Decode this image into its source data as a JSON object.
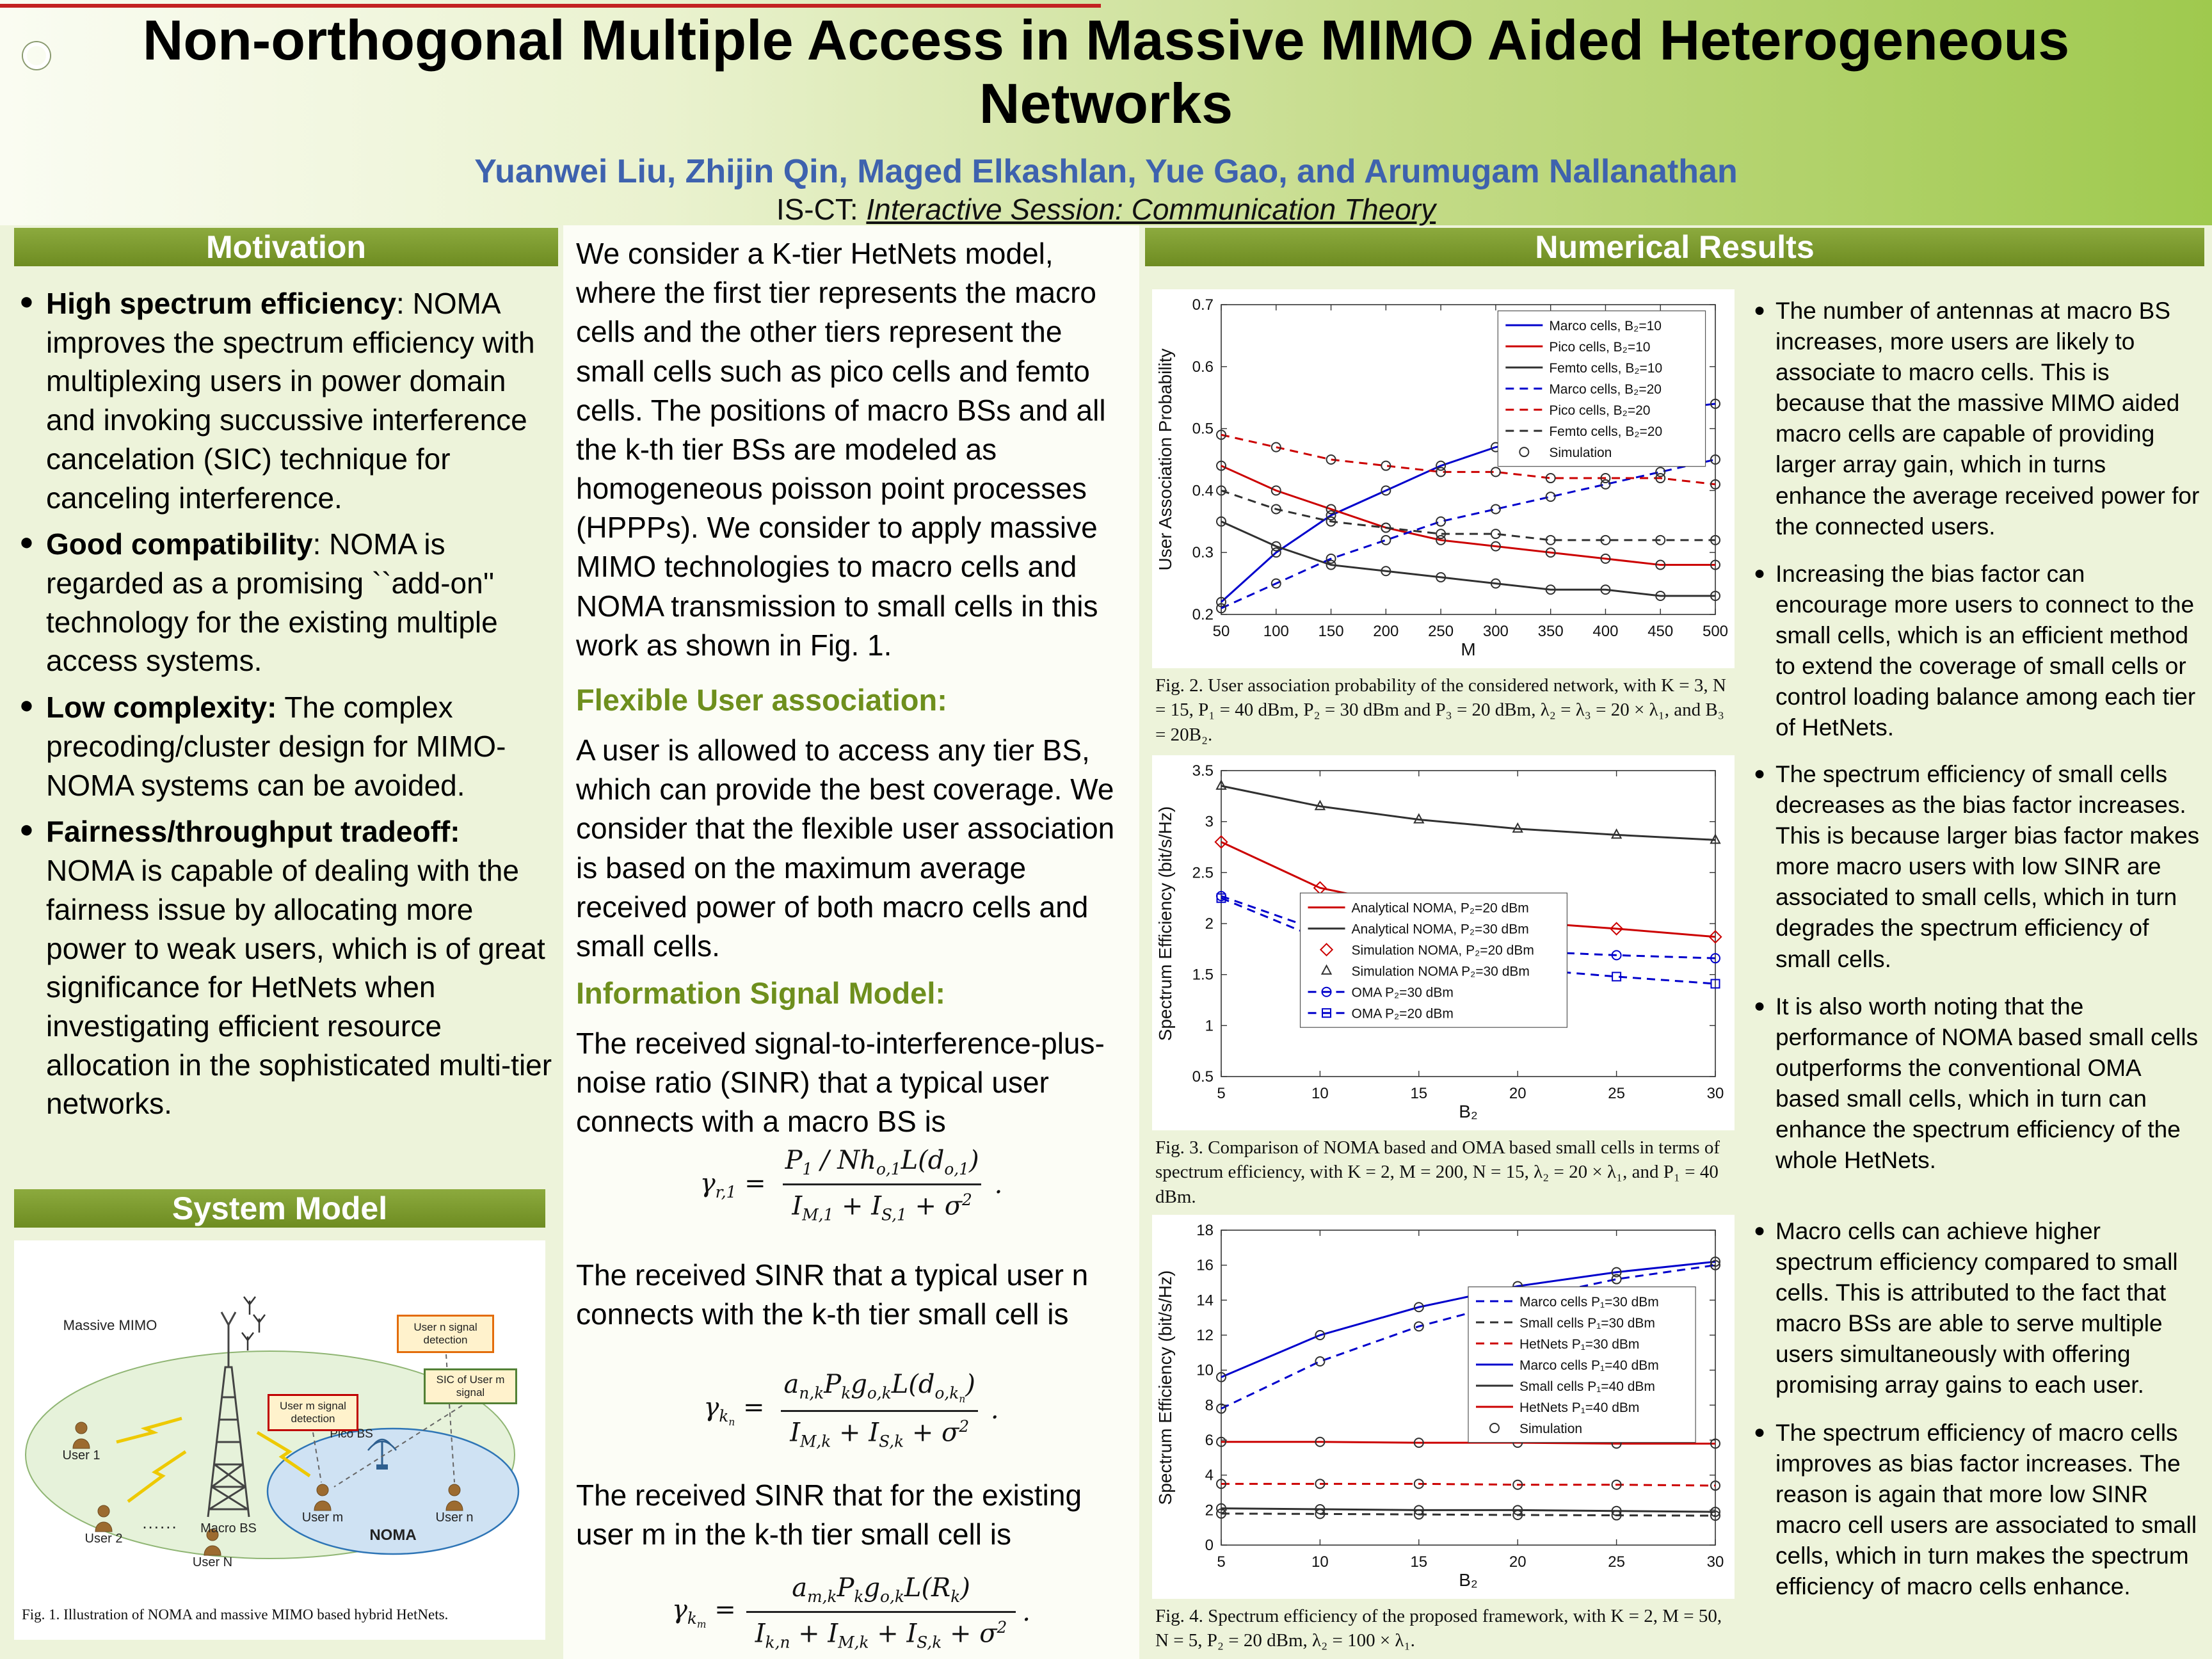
{
  "header": {
    "title": "Non-orthogonal Multiple Access in Massive MIMO Aided Heterogeneous Networks",
    "authors": "Yuanwei Liu, Zhijin Qin, Maged Elkashlan, Yue Gao, and Arumugam Nallanathan",
    "session_prefix": "IS-CT: ",
    "session_italic": "Interactive Session: Communication Theory"
  },
  "motivation": {
    "heading": "Motivation",
    "items": [
      {
        "lead": "High spectrum efficiency",
        "text": ": NOMA improves the spectrum efficiency with multiplexing users in power domain and invoking succussive interference cancelation (SIC) technique for canceling interference."
      },
      {
        "lead": "Good compatibility",
        "text": ": NOMA is regarded as a promising ``add-on'' technology for the existing multiple access systems."
      },
      {
        "lead": "Low complexity:",
        "text": " The complex precoding/cluster design for MIMO-NOMA systems can be avoided."
      },
      {
        "lead": "Fairness/throughput tradeoff:",
        "text": " NOMA is capable of dealing with the fairness issue by allocating more power to weak users, which is of great significance for HetNets when investigating efficient resource allocation in the sophisticated multi-tier networks."
      }
    ]
  },
  "system_model": {
    "heading": "System Model",
    "fig1": {
      "massive_mimo": "Massive MIMO",
      "macro_bs": "Macro BS",
      "pico_bs": "Pico BS",
      "noma": "NOMA",
      "user1": "User 1",
      "user2": "User 2",
      "userN": "User N",
      "dots": "......",
      "user_m": "User m",
      "user_n": "User n",
      "box_user_n": "User n signal detection",
      "box_sic": "SIC of User m signal",
      "box_user_m": "User m signal detection",
      "caption": "Fig. 1.   Illustration of NOMA and massive MIMO based hybrid HetNets."
    }
  },
  "middle": {
    "intro": "We consider a K-tier HetNets model, where the first tier represents the macro cells and the other tiers represent the small cells such as pico cells and femto cells. The positions of macro BSs and all the k-th tier BSs are modeled as homogeneous poisson point processes (HPPPs). We consider to apply massive MIMO technologies to macro cells and NOMA transmission to small cells in this work as shown in Fig. 1.",
    "flexible_heading": "Flexible User association:",
    "flexible_text": "A user is allowed to access any tier BS, which can provide the best coverage. We consider that the flexible user association is based on the maximum average received power of both macro cells and small cells.",
    "signal_heading": "Information Signal Model:",
    "sinr_macro_text": "The received signal-to-interference-plus-noise ratio (SINR) that a typical user connects with a macro BS is",
    "eq1": {
      "lhs": "γ<sub>r,1</sub> =",
      "num": "P<sub>1</sub> / Nh<sub>o,1</sub>L(d<sub>o,1</sub>)",
      "den": "I<sub>M,1</sub> + I<sub>S,1</sub> + σ<sup>2</sup>",
      "tail": "."
    },
    "sinr_smalln_text": "The received SINR that a typical user n connects with the k-th tier small cell is",
    "eq2": {
      "lhs": "γ<sub>k<sub>n</sub></sub> =",
      "num": "a<sub>n,k</sub>P<sub>k</sub>g<sub>o,k</sub>L(d<sub>o,k<sub>n</sub></sub>)",
      "den": "I<sub>M,k</sub> + I<sub>S,k</sub> + σ<sup>2</sup>",
      "tail": "."
    },
    "sinr_smallm_text": "The  received SINR that for the existing user m in the k-th tier small cell is",
    "eq3": {
      "lhs": "γ<sub>k<sub>m</sub></sub> =",
      "num": "a<sub>m,k</sub>P<sub>k</sub>g<sub>o,k</sub>L(R<sub>k</sub>)",
      "den": "I<sub>k,n</sub> + I<sub>M,k</sub> + I<sub>S,k</sub> + σ<sup>2</sup>",
      "tail": "."
    }
  },
  "numerical": {
    "heading": "Numerical Results",
    "fig2_caption": "Fig. 2.   User association probability of the considered network, with K = 3, N = 15, P₁ = 40 dBm, P₂ = 30 dBm and P₃ = 20 dBm, λ₂ = λ₃ = 20 × λ₁, and B₃ = 20B₂.",
    "fig3_caption": "Fig. 3.   Comparison of NOMA based and OMA based small cells in terms of spectrum efficiency, with K = 2, M = 200, N = 15, λ₂ = 20 × λ₁, and P₁ = 40 dBm.",
    "fig4_caption": "Fig. 4.   Spectrum efficiency of the proposed framework, with K = 2, M = 50, N = 5, P₂ = 20 dBm, λ₂ = 100 × λ₁.",
    "fig2_bullets": [
      "The number of antennas at macro BS increases, more users are likely to associate to macro cells. This is because that the massive MIMO aided macro cells are capable of providing larger array gain, which in turns enhance the average received power for the connected users.",
      "Increasing the bias factor can encourage more users to connect to the small cells, which is an efficient method to extend the coverage of small cells or control loading balance among each tier of HetNets."
    ],
    "fig3_bullets": [
      "The spectrum efficiency of small cells decreases as the bias factor increases. This is because larger bias factor makes more macro users with low SINR are associated to small cells, which in turn degrades the spectrum efficiency of small cells.",
      "It is also worth noting that the performance of NOMA based small cells outperforms the conventional OMA based small cells, which in turn can enhance the spectrum efficiency of the whole HetNets."
    ],
    "fig4_bullets": [
      "Macro cells can achieve higher spectrum efficiency compared to small cells. This is attributed to the fact that macro BSs are able to serve multiple users simultaneously with offering promising array gains to each user.",
      "The spectrum efficiency of macro cells improves as bias factor increases. The reason is again that more low SINR macro cell users are associated to small cells, which in turn makes the spectrum efficiency of macro cells enhance."
    ]
  },
  "chart_data": [
    {
      "name": "fig2",
      "type": "line",
      "xlabel": "M",
      "ylabel": "User Association Probability",
      "xlim": [
        50,
        500
      ],
      "ylim": [
        0.2,
        0.7
      ],
      "xticks": [
        50,
        100,
        150,
        200,
        250,
        300,
        350,
        400,
        450,
        500
      ],
      "yticks": [
        0.2,
        0.3,
        0.4,
        0.5,
        0.6,
        0.7
      ],
      "x": [
        50,
        100,
        150,
        200,
        250,
        300,
        350,
        400,
        450,
        500
      ],
      "series": [
        {
          "name": "Marco cells, B₂=10",
          "color": "#0000CC",
          "dash": false,
          "marker": "circle",
          "mcolor": "#303030",
          "values": [
            0.22,
            0.3,
            0.36,
            0.4,
            0.44,
            0.47,
            0.49,
            0.51,
            0.53,
            0.54
          ]
        },
        {
          "name": "Pico cells, B₂=10",
          "color": "#CC0000",
          "dash": false,
          "marker": "circle",
          "mcolor": "#303030",
          "values": [
            0.44,
            0.4,
            0.37,
            0.34,
            0.32,
            0.31,
            0.3,
            0.29,
            0.28,
            0.28
          ]
        },
        {
          "name": "Femto cells, B₂=10",
          "color": "#303030",
          "dash": false,
          "marker": "circle",
          "mcolor": "#303030",
          "values": [
            0.35,
            0.31,
            0.28,
            0.27,
            0.26,
            0.25,
            0.24,
            0.24,
            0.23,
            0.23
          ]
        },
        {
          "name": "Marco cells, B₂=20",
          "color": "#0000CC",
          "dash": true,
          "marker": "circle",
          "mcolor": "#303030",
          "values": [
            0.21,
            0.25,
            0.29,
            0.32,
            0.35,
            0.37,
            0.39,
            0.41,
            0.43,
            0.45
          ]
        },
        {
          "name": "Pico cells, B₂=20",
          "color": "#CC0000",
          "dash": true,
          "marker": "circle",
          "mcolor": "#303030",
          "values": [
            0.49,
            0.47,
            0.45,
            0.44,
            0.43,
            0.43,
            0.42,
            0.42,
            0.42,
            0.41
          ]
        },
        {
          "name": "Femto cells, B₂=20",
          "color": "#303030",
          "dash": true,
          "marker": "circle",
          "mcolor": "#303030",
          "values": [
            0.4,
            0.37,
            0.35,
            0.34,
            0.33,
            0.33,
            0.32,
            0.32,
            0.32,
            0.32
          ]
        }
      ],
      "legend": [
        {
          "name": "Marco cells, B₂=10",
          "color": "#0000CC",
          "dash": false
        },
        {
          "name": "Pico cells, B₂=10",
          "color": "#CC0000",
          "dash": false
        },
        {
          "name": "Femto cells, B₂=10",
          "color": "#303030",
          "dash": false
        },
        {
          "name": "Marco cells, B₂=20",
          "color": "#0000CC",
          "dash": true
        },
        {
          "name": "Pico cells, B₂=20",
          "color": "#CC0000",
          "dash": true
        },
        {
          "name": "Femto cells, B₂=20",
          "color": "#303030",
          "dash": true
        },
        {
          "name": "Simulation",
          "color": "#303030",
          "line": false,
          "marker": "circle"
        }
      ],
      "legend_box": {
        "x": 0.56,
        "y": 0.02,
        "w": 0.42
      }
    },
    {
      "name": "fig3",
      "type": "line",
      "xlabel": "B₂",
      "ylabel": "Spectrum Efficiency (bit/s/Hz)",
      "xlim": [
        5,
        30
      ],
      "ylim": [
        0.5,
        3.5
      ],
      "xticks": [
        5,
        10,
        15,
        20,
        25,
        30
      ],
      "yticks": [
        0.5,
        1,
        1.5,
        2,
        2.5,
        3,
        3.5
      ],
      "x": [
        5,
        10,
        15,
        20,
        25,
        30
      ],
      "series": [
        {
          "name": "Analytical NOMA, P₂=30 dBm",
          "color": "#303030",
          "dash": false,
          "marker": "triangle",
          "values": [
            3.35,
            3.15,
            3.02,
            2.93,
            2.87,
            2.82
          ]
        },
        {
          "name": "Analytical NOMA, P₂=20 dBm",
          "color": "#CC0000",
          "dash": false,
          "marker": "diamond",
          "values": [
            2.8,
            2.35,
            2.15,
            2.02,
            1.95,
            1.87
          ]
        },
        {
          "name": "OMA P₂=30 dBm",
          "color": "#0000CC",
          "dash": true,
          "marker": "circle",
          "values": [
            2.27,
            1.93,
            1.8,
            1.73,
            1.69,
            1.66
          ]
        },
        {
          "name": "OMA P₂=20 dBm",
          "color": "#0000CC",
          "dash": true,
          "marker": "square",
          "values": [
            2.25,
            1.85,
            1.66,
            1.56,
            1.48,
            1.41
          ]
        }
      ],
      "legend": [
        {
          "name": "Analytical NOMA, P₂=20 dBm",
          "color": "#CC0000",
          "dash": false
        },
        {
          "name": "Analytical NOMA, P₂=30 dBm",
          "color": "#303030",
          "dash": false
        },
        {
          "name": "Simulation NOMA, P₂=20 dBm",
          "color": "#CC0000",
          "line": false,
          "marker": "diamond"
        },
        {
          "name": "Simulation NOMA P₂=30 dBm",
          "color": "#303030",
          "line": false,
          "marker": "triangle"
        },
        {
          "name": "OMA P₂=30 dBm",
          "color": "#0000CC",
          "dash": true,
          "marker": "circle"
        },
        {
          "name": "OMA P₂=20 dBm",
          "color": "#0000CC",
          "dash": true,
          "marker": "square"
        }
      ],
      "legend_box": {
        "x": 0.16,
        "y": 0.4,
        "w": 0.54
      }
    },
    {
      "name": "fig4",
      "type": "line",
      "xlabel": "B₂",
      "ylabel": "Spectrum Efficiency (bit/s/Hz)",
      "xlim": [
        5,
        30
      ],
      "ylim": [
        0,
        18
      ],
      "xticks": [
        5,
        10,
        15,
        20,
        25,
        30
      ],
      "yticks": [
        0,
        2,
        4,
        6,
        8,
        10,
        12,
        14,
        16,
        18
      ],
      "x": [
        5,
        10,
        15,
        20,
        25,
        30
      ],
      "series": [
        {
          "name": "Marco cells P₁=40 dBm",
          "color": "#0000CC",
          "dash": false,
          "marker": "circle",
          "mcolor": "#303030",
          "values": [
            9.6,
            12.0,
            13.6,
            14.8,
            15.6,
            16.2
          ]
        },
        {
          "name": "Marco cells P₁=30 dBm",
          "color": "#0000CC",
          "dash": true,
          "marker": "circle",
          "mcolor": "#303030",
          "values": [
            7.8,
            10.5,
            12.5,
            14.0,
            15.2,
            16.0
          ]
        },
        {
          "name": "HetNets P₁=40 dBm",
          "color": "#CC0000",
          "dash": false,
          "marker": "circle",
          "mcolor": "#303030",
          "values": [
            5.9,
            5.9,
            5.85,
            5.85,
            5.8,
            5.8
          ]
        },
        {
          "name": "HetNets P₁=30 dBm",
          "color": "#CC0000",
          "dash": true,
          "marker": "circle",
          "mcolor": "#303030",
          "values": [
            3.5,
            3.5,
            3.5,
            3.45,
            3.45,
            3.4
          ]
        },
        {
          "name": "Small cells P₁=40 dBm",
          "color": "#303030",
          "dash": false,
          "marker": "circle",
          "mcolor": "#303030",
          "values": [
            2.1,
            2.05,
            2.0,
            2.0,
            1.95,
            1.9
          ]
        },
        {
          "name": "Small cells P₁=30 dBm",
          "color": "#303030",
          "dash": true,
          "marker": "circle",
          "mcolor": "#303030",
          "values": [
            1.8,
            1.78,
            1.75,
            1.72,
            1.7,
            1.68
          ]
        }
      ],
      "legend": [
        {
          "name": "Marco cells P₁=30 dBm",
          "color": "#0000CC",
          "dash": true
        },
        {
          "name": "Small cells P₁=30 dBm",
          "color": "#303030",
          "dash": true
        },
        {
          "name": "HetNets P₁=30 dBm",
          "color": "#CC0000",
          "dash": true
        },
        {
          "name": "Marco cells P₁=40 dBm",
          "color": "#0000CC",
          "dash": false
        },
        {
          "name": "Small cells P₁=40 dBm",
          "color": "#303030",
          "dash": false
        },
        {
          "name": "HetNets P₁=40 dBm",
          "color": "#CC0000",
          "dash": false
        },
        {
          "name": "Simulation",
          "color": "#303030",
          "line": false,
          "marker": "circle"
        }
      ],
      "legend_box": {
        "x": 0.5,
        "y": 0.18,
        "w": 0.46
      }
    }
  ]
}
